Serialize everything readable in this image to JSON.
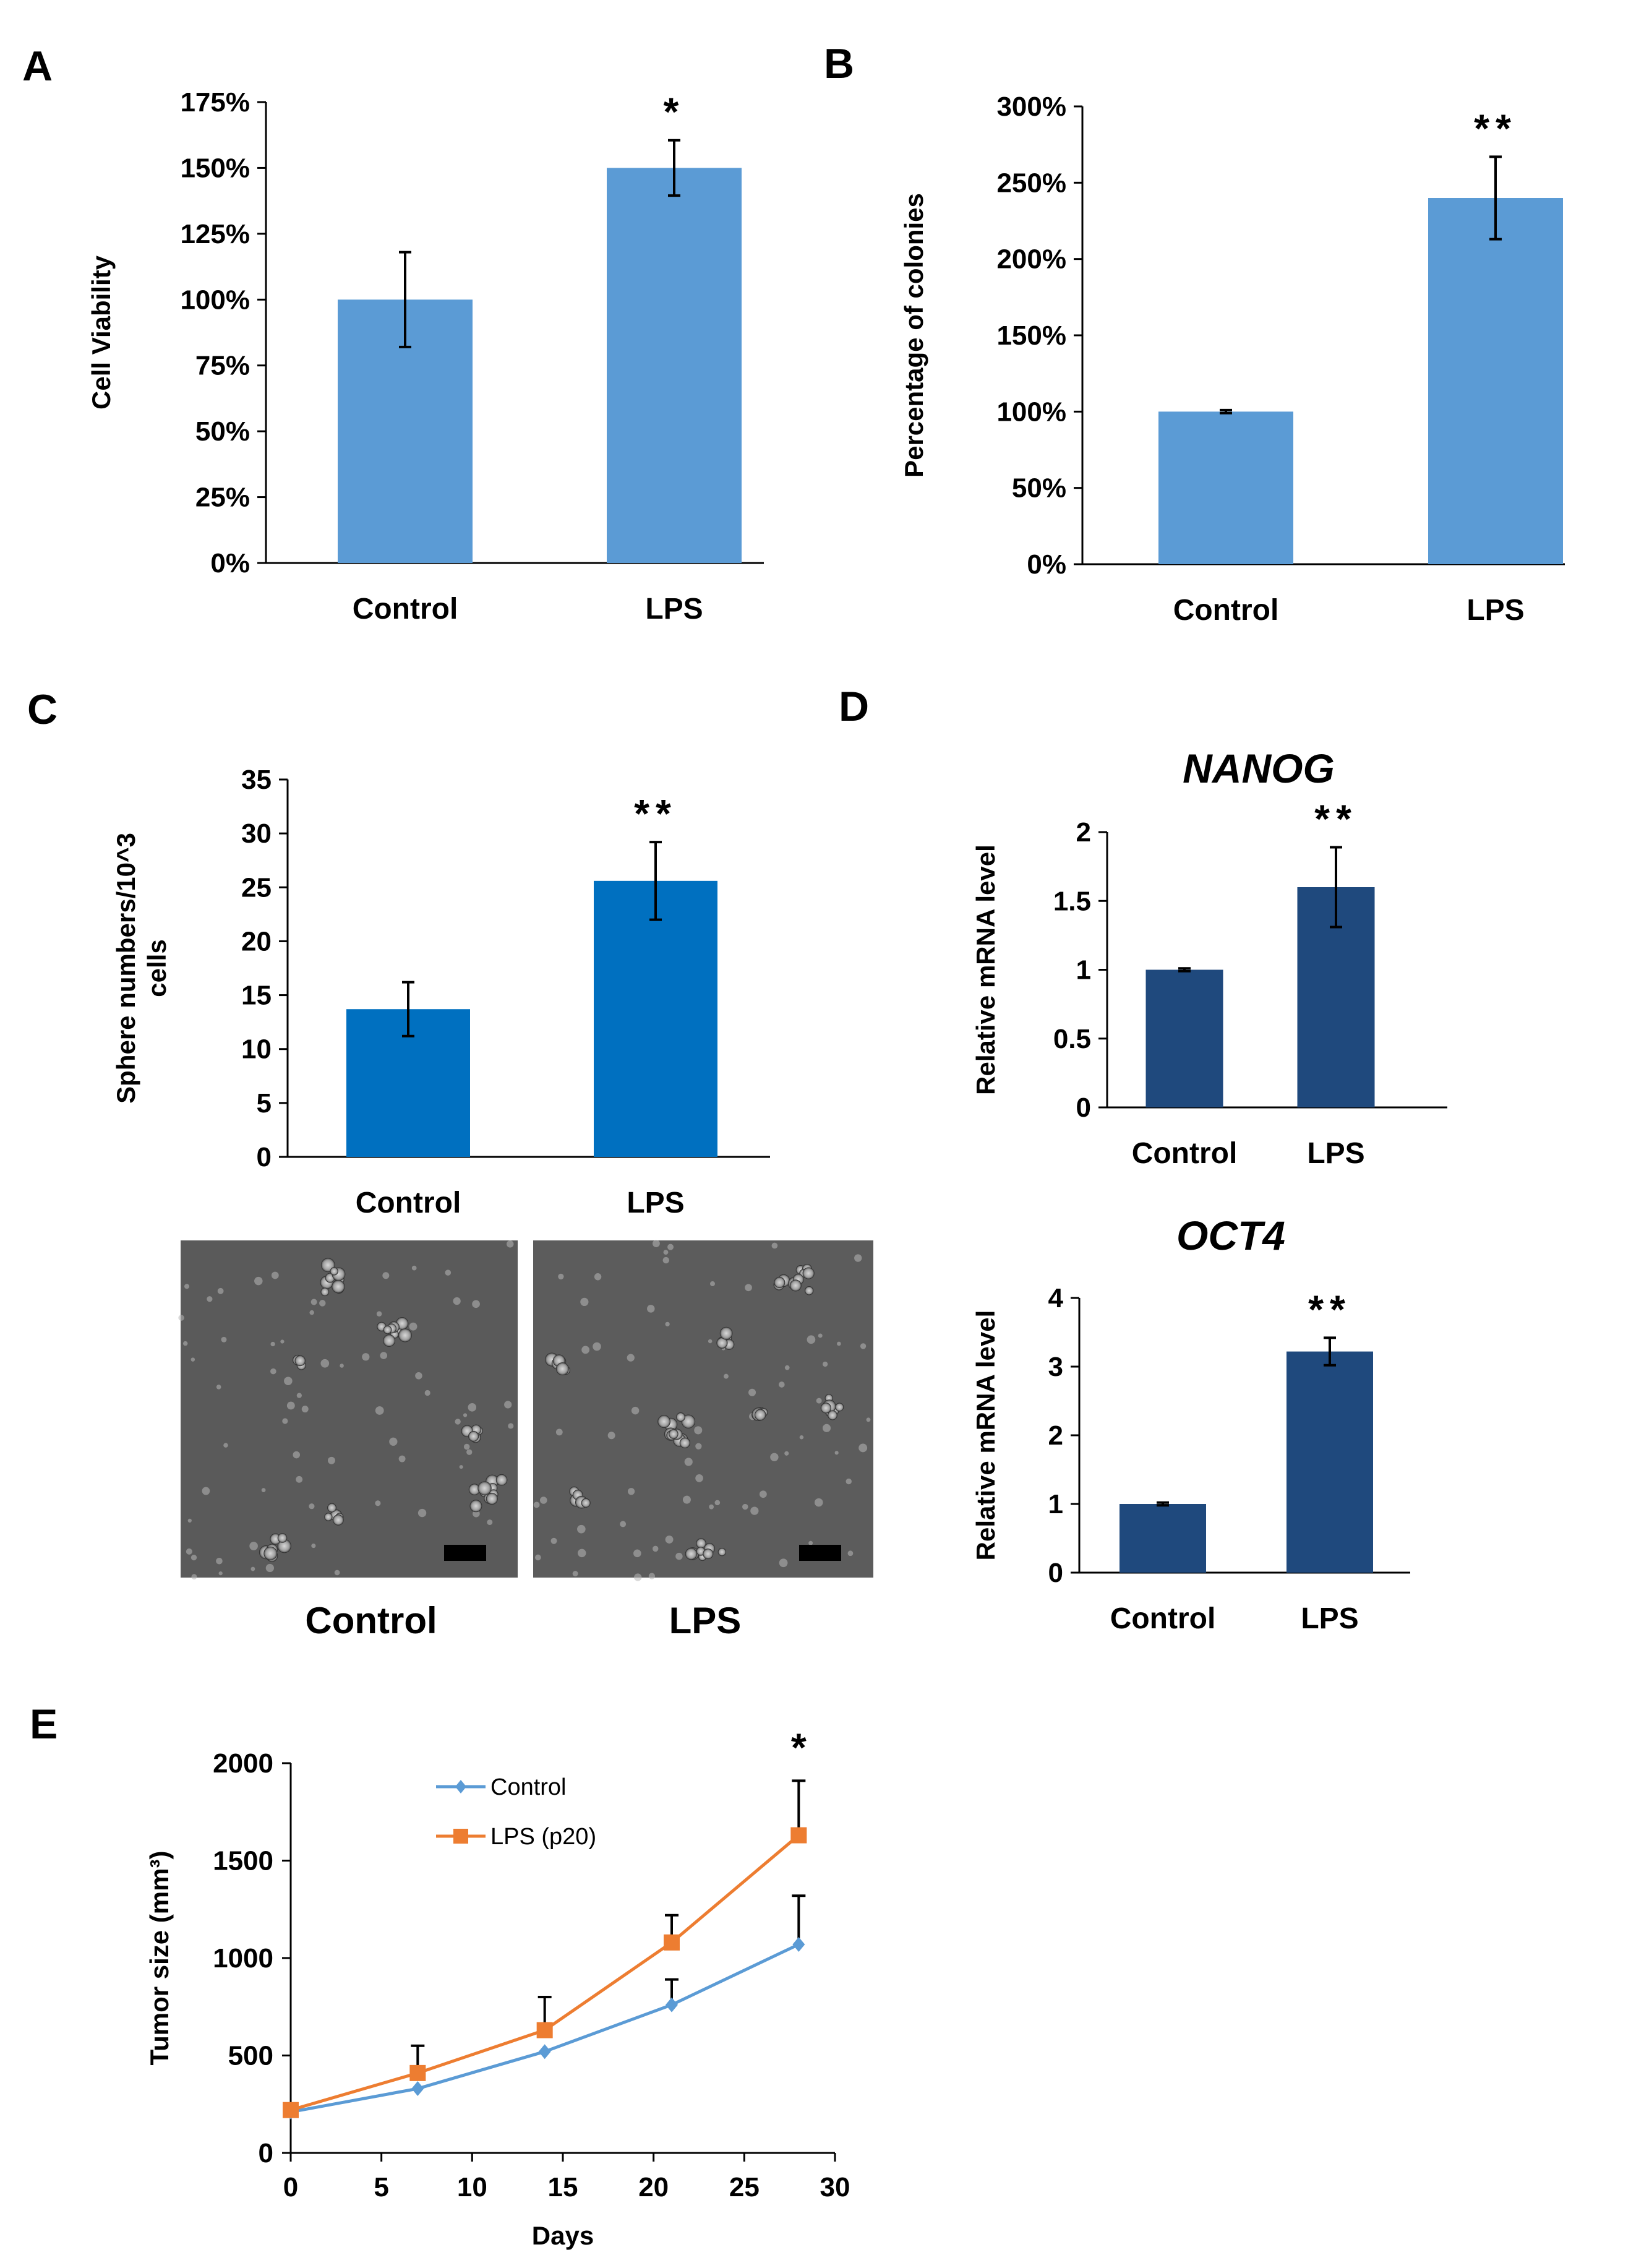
{
  "chart_data": [
    {
      "panel": "A",
      "type": "bar",
      "categories": [
        "Control",
        "LPS"
      ],
      "values": [
        100,
        150
      ],
      "errors": [
        18,
        10.5
      ],
      "significance": [
        "",
        "*"
      ],
      "ylabel": "Cell Viability",
      "ylim": [
        0,
        175
      ],
      "yticks": [
        0,
        25,
        50,
        75,
        100,
        125,
        150,
        175
      ],
      "ytick_labels": [
        "0%",
        "25%",
        "50%",
        "75%",
        "100%",
        "125%",
        "150%",
        "175%"
      ],
      "color": "#5b9bd5"
    },
    {
      "panel": "B",
      "type": "bar",
      "categories": [
        "Control",
        "LPS"
      ],
      "values": [
        100,
        240
      ],
      "errors": [
        1,
        27
      ],
      "significance": [
        "",
        "**"
      ],
      "ylabel": "Percentage of  colonies",
      "ylim": [
        0,
        300
      ],
      "yticks": [
        0,
        50,
        100,
        150,
        200,
        250,
        300
      ],
      "ytick_labels": [
        "0%",
        "50%",
        "100%",
        "150%",
        "200%",
        "250%",
        "300%"
      ],
      "color": "#5b9bd5"
    },
    {
      "panel": "C",
      "type": "bar",
      "categories": [
        "Control",
        "LPS"
      ],
      "values": [
        13.7,
        25.6
      ],
      "errors": [
        2.5,
        3.6
      ],
      "significance": [
        "",
        "**"
      ],
      "ylabel": [
        "Sphere numbers/10^3",
        "cells"
      ],
      "ylim": [
        0,
        35
      ],
      "yticks": [
        0,
        5,
        10,
        15,
        20,
        25,
        30,
        35
      ],
      "ytick_labels": [
        "0",
        "5",
        "10",
        "15",
        "20",
        "25",
        "30",
        "35"
      ],
      "color": "#0070c0"
    },
    {
      "panel": "D",
      "type": "bar",
      "title": "NANOG",
      "categories": [
        "Control",
        "LPS"
      ],
      "values": [
        1.0,
        1.6
      ],
      "errors": [
        0.01,
        0.29
      ],
      "significance": [
        "",
        "**"
      ],
      "ylabel": "Relative mRNA level",
      "ylim": [
        0,
        2
      ],
      "yticks": [
        0,
        0.5,
        1,
        1.5,
        2
      ],
      "ytick_labels": [
        "0",
        "0.5",
        "1",
        "1.5",
        "2"
      ],
      "color": "#1f497d"
    },
    {
      "panel": "D",
      "type": "bar",
      "title": "OCT4",
      "categories": [
        "Control",
        "LPS"
      ],
      "values": [
        1.0,
        3.22
      ],
      "errors": [
        0.02,
        0.2
      ],
      "significance": [
        "",
        "**"
      ],
      "ylabel": "Relative mRNA level",
      "ylim": [
        0,
        4
      ],
      "yticks": [
        0,
        1,
        2,
        3,
        4
      ],
      "ytick_labels": [
        "0",
        "1",
        "2",
        "3",
        "4"
      ],
      "color": "#1f497d"
    },
    {
      "panel": "E",
      "type": "line",
      "x": [
        0,
        7,
        14,
        21,
        28
      ],
      "series": [
        {
          "name": "Control",
          "values": [
            210,
            330,
            520,
            760,
            1070
          ],
          "errors": [
            0,
            0,
            0,
            130,
            250
          ],
          "color": "#5b9bd5",
          "marker": "diamond"
        },
        {
          "name": "LPS (p20)",
          "values": [
            220,
            410,
            630,
            1080,
            1630
          ],
          "errors": [
            0,
            140,
            170,
            140,
            280
          ],
          "color": "#ed7d31",
          "marker": "square"
        }
      ],
      "annotation": "*",
      "xlabel": "Days",
      "ylabel": "Tumor size (mm³)",
      "xlim": [
        0,
        30
      ],
      "ylim": [
        0,
        2000
      ],
      "xticks": [
        0,
        5,
        10,
        15,
        20,
        25,
        30
      ],
      "yticks": [
        0,
        500,
        1000,
        1500,
        2000
      ],
      "legend_position": "top-left"
    }
  ],
  "panel_letters": [
    "A",
    "B",
    "C",
    "D",
    "E"
  ],
  "micrograph_labels": [
    "Control",
    "LPS"
  ]
}
